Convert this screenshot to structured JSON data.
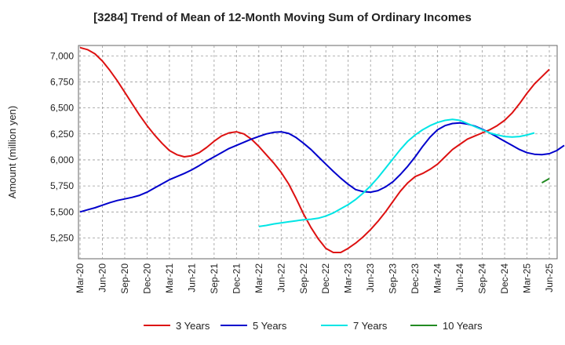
{
  "chart_data": {
    "type": "line",
    "title": "[3284]  Trend of Mean of 12-Month Moving Sum of Ordinary Incomes",
    "xlabel": "",
    "ylabel": "Amount (million yen)",
    "ylim": [
      5050,
      7100
    ],
    "yticks": [
      5250,
      5500,
      5750,
      6000,
      6250,
      6500,
      6750,
      7000
    ],
    "ytick_labels": [
      "5,250",
      "5,500",
      "5,750",
      "6,000",
      "6,250",
      "6,500",
      "6,750",
      "7,000"
    ],
    "x_start": "Mar-20",
    "x_tick_labels": [
      "Mar-20",
      "Jun-20",
      "Sep-20",
      "Dec-20",
      "Mar-21",
      "Jun-21",
      "Sep-21",
      "Dec-21",
      "Mar-22",
      "Jun-22",
      "Sep-22",
      "Dec-22",
      "Mar-23",
      "Jun-23",
      "Sep-23",
      "Dec-23",
      "Mar-24",
      "Jun-24",
      "Sep-24",
      "Dec-24",
      "Mar-25",
      "Jun-25"
    ],
    "grid": true,
    "legend_position": "bottom",
    "series": [
      {
        "name": "3 Years",
        "color": "#dd1111",
        "start_index": 0,
        "values": [
          7080,
          7060,
          7020,
          6950,
          6860,
          6760,
          6650,
          6540,
          6430,
          6330,
          6240,
          6160,
          6090,
          6050,
          6030,
          6040,
          6070,
          6120,
          6180,
          6230,
          6260,
          6270,
          6250,
          6200,
          6130,
          6050,
          5970,
          5880,
          5770,
          5630,
          5480,
          5350,
          5240,
          5150,
          5110,
          5110,
          5150,
          5200,
          5260,
          5330,
          5410,
          5500,
          5600,
          5700,
          5780,
          5840,
          5870,
          5910,
          5960,
          6030,
          6100,
          6150,
          6200,
          6230,
          6260,
          6290,
          6330,
          6380,
          6450,
          6540,
          6640,
          6730,
          6800,
          6870
        ]
      },
      {
        "name": "5 Years",
        "color": "#0000cc",
        "start_index": 0,
        "values": [
          5500,
          5520,
          5540,
          5565,
          5590,
          5610,
          5625,
          5640,
          5660,
          5690,
          5730,
          5770,
          5810,
          5840,
          5870,
          5905,
          5945,
          5990,
          6030,
          6070,
          6110,
          6140,
          6170,
          6200,
          6225,
          6250,
          6265,
          6270,
          6255,
          6215,
          6160,
          6100,
          6030,
          5960,
          5890,
          5825,
          5765,
          5715,
          5695,
          5690,
          5705,
          5740,
          5790,
          5860,
          5940,
          6030,
          6130,
          6220,
          6290,
          6330,
          6350,
          6355,
          6345,
          6325,
          6295,
          6260,
          6220,
          6180,
          6140,
          6100,
          6070,
          6055,
          6050,
          6060,
          6090,
          6140
        ]
      },
      {
        "name": "7 Years",
        "color": "#00e5e5",
        "start_index": 24,
        "values": [
          5360,
          5370,
          5385,
          5395,
          5405,
          5415,
          5425,
          5430,
          5440,
          5460,
          5490,
          5530,
          5570,
          5620,
          5680,
          5750,
          5830,
          5920,
          6010,
          6100,
          6180,
          6240,
          6290,
          6330,
          6360,
          6380,
          6390,
          6380,
          6350,
          6320,
          6290,
          6260,
          6240,
          6225,
          6220,
          6225,
          6240,
          6260
        ]
      },
      {
        "name": "10 Years",
        "color": "#228b22",
        "start_index": 62,
        "values": [
          5780,
          5820
        ]
      }
    ]
  }
}
